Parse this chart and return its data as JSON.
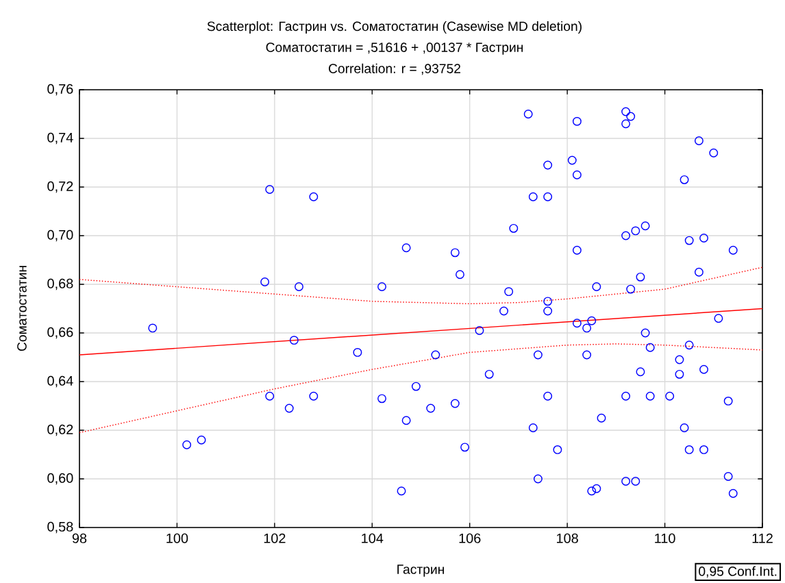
{
  "chart_data": {
    "type": "scatter",
    "title": "Scatterplot: Гастрин vs. Соматостатин (Casewise MD deletion)",
    "subtitle": "Соматостатин = ,51616 + ,00137 * Гастрин",
    "annotations": [
      "Correlation: r = ,93752",
      "0,95 Conf.Int."
    ],
    "xlabel": "Гастрин",
    "ylabel": "Соматостатин",
    "xlim": [
      98,
      112
    ],
    "xticks": [
      98,
      100,
      102,
      104,
      106,
      108,
      110,
      112
    ],
    "ylim": [
      0.58,
      0.76
    ],
    "yticks": [
      {
        "value": 0.58,
        "label": "0,58"
      },
      {
        "value": 0.6,
        "label": "0,60"
      },
      {
        "value": 0.62,
        "label": "0,62"
      },
      {
        "value": 0.64,
        "label": "0,64"
      },
      {
        "value": 0.66,
        "label": "0,66"
      },
      {
        "value": 0.68,
        "label": "0,68"
      },
      {
        "value": 0.7,
        "label": "0,70"
      },
      {
        "value": 0.72,
        "label": "0,72"
      },
      {
        "value": 0.74,
        "label": "0,74"
      },
      {
        "value": 0.76,
        "label": "0,76"
      }
    ],
    "grid": true,
    "marker": "circle",
    "x": [
      99.5,
      100.2,
      100.5,
      101.8,
      101.9,
      101.9,
      102.3,
      102.4,
      102.5,
      102.8,
      102.8,
      103.7,
      104.2,
      104.2,
      104.6,
      104.7,
      104.7,
      104.9,
      105.2,
      105.3,
      105.7,
      105.7,
      105.8,
      105.9,
      106.2,
      106.4,
      106.7,
      106.8,
      106.9,
      107.2,
      107.3,
      107.3,
      107.4,
      107.4,
      107.6,
      107.6,
      107.6,
      107.6,
      107.6,
      107.8,
      108.1,
      108.2,
      108.2,
      108.2,
      108.2,
      108.4,
      108.4,
      108.5,
      108.5,
      108.6,
      108.6,
      108.7,
      109.2,
      109.2,
      109.3,
      109.2,
      109.4,
      109.6,
      109.5,
      109.3,
      109.6,
      109.7,
      109.5,
      109.2,
      109.7,
      109.2,
      109.4,
      110.1,
      110.3,
      110.3,
      110.4,
      110.4,
      110.5,
      110.5,
      110.5,
      110.7,
      110.7,
      110.8,
      110.8,
      110.8,
      111.0,
      111.1,
      111.3,
      111.3,
      111.4,
      111.4
    ],
    "series": [
      {
        "color": "#0000ff",
        "values": [
          0.662,
          0.614,
          0.616,
          0.681,
          0.719,
          0.634,
          0.629,
          0.657,
          0.679,
          0.716,
          0.634,
          0.652,
          0.679,
          0.633,
          0.595,
          0.695,
          0.624,
          0.638,
          0.629,
          0.651,
          0.693,
          0.631,
          0.684,
          0.613,
          0.661,
          0.643,
          0.669,
          0.677,
          0.703,
          0.75,
          0.621,
          0.716,
          0.651,
          0.6,
          0.729,
          0.716,
          0.673,
          0.669,
          0.634,
          0.612,
          0.731,
          0.747,
          0.725,
          0.694,
          0.664,
          0.662,
          0.651,
          0.665,
          0.595,
          0.596,
          0.679,
          0.625,
          0.751,
          0.746,
          0.749,
          0.7,
          0.702,
          0.704,
          0.683,
          0.678,
          0.66,
          0.654,
          0.644,
          0.634,
          0.634,
          0.599,
          0.599,
          0.634,
          0.649,
          0.643,
          0.723,
          0.621,
          0.698,
          0.655,
          0.612,
          0.739,
          0.685,
          0.699,
          0.645,
          0.612,
          0.734,
          0.666,
          0.632,
          0.601,
          0.694,
          0.594
        ]
      },
      {
        "type": "line",
        "color": "#ff0000",
        "line_style": "solid",
        "marker": "none",
        "x": [
          98,
          112
        ],
        "values": [
          0.651,
          0.67
        ]
      },
      {
        "type": "line",
        "color": "#ff0000",
        "line_style": "dotted",
        "marker": "none",
        "x": [
          98,
          100,
          102,
          104,
          106,
          107,
          108,
          110,
          112
        ],
        "values": [
          0.682,
          0.679,
          0.676,
          0.673,
          0.672,
          0.6725,
          0.674,
          0.678,
          0.687
        ]
      },
      {
        "type": "line",
        "color": "#ff0000",
        "line_style": "dotted",
        "marker": "none",
        "x": [
          98,
          100,
          102,
          104,
          106,
          108,
          109,
          110,
          112
        ],
        "values": [
          0.619,
          0.628,
          0.637,
          0.645,
          0.652,
          0.655,
          0.6555,
          0.655,
          0.653
        ]
      }
    ]
  }
}
